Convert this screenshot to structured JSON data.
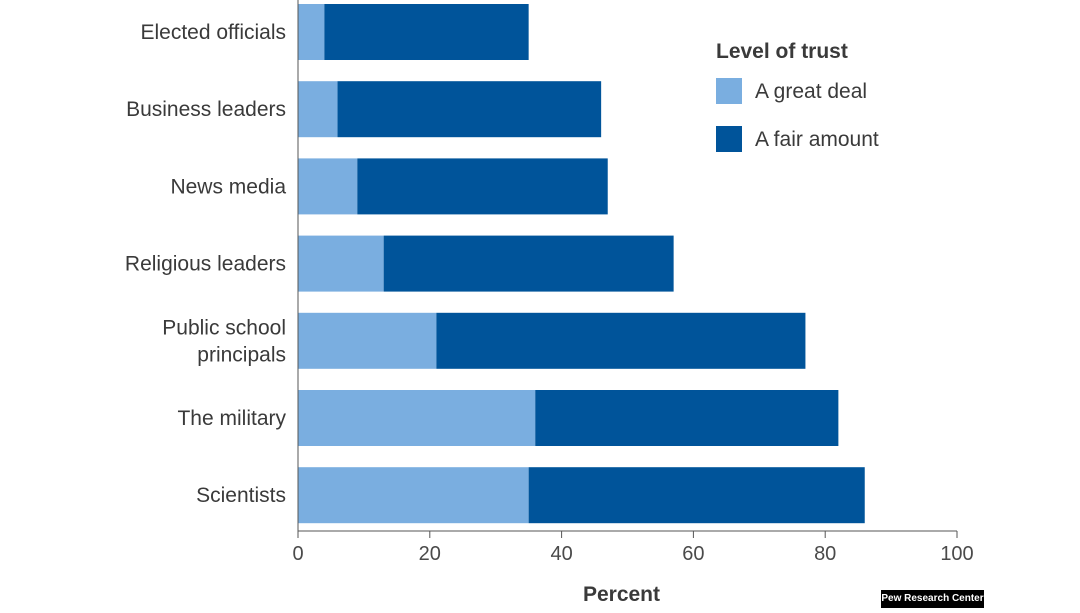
{
  "chart_data": {
    "type": "bar",
    "orientation": "horizontal",
    "stacked": true,
    "categories": [
      "Elected officials",
      "Business leaders",
      "News media",
      "Religious leaders",
      "Public school principals",
      "The military",
      "Scientists"
    ],
    "category_lines": [
      [
        "Elected officials"
      ],
      [
        "Business leaders"
      ],
      [
        "News media"
      ],
      [
        "Religious leaders"
      ],
      [
        "Public school",
        "principals"
      ],
      [
        "The military"
      ],
      [
        "Scientists"
      ]
    ],
    "series": [
      {
        "name": "A great deal",
        "color": "#7aaee0",
        "values": [
          4,
          6,
          9,
          13,
          21,
          36,
          35
        ]
      },
      {
        "name": "A fair amount",
        "color": "#00549a",
        "values": [
          31,
          40,
          38,
          44,
          56,
          46,
          51
        ]
      }
    ],
    "xlabel": "Percent",
    "xlim": [
      0,
      100
    ],
    "xticks": [
      0,
      20,
      40,
      60,
      80,
      100
    ],
    "legend_title": "Level of trust",
    "legend_position": "top-right",
    "grid": false
  },
  "credit": "Pew Research Center"
}
